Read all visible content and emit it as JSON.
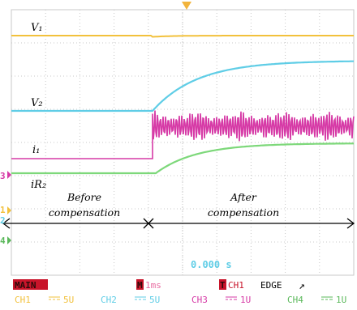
{
  "colors": {
    "grid": "#c8c8c8",
    "ch1": "#f2c13c",
    "ch2": "#5fcde6",
    "ch3": "#d63aa6",
    "ch4": "#7dd87a",
    "status_red": "#c8142a",
    "trigger_marker": "#f2b43c"
  },
  "signals": {
    "v1": "V₁",
    "v2": "V₂",
    "i1": "i₁",
    "ir2": "iR₂"
  },
  "annotations": {
    "before_line1": "Before",
    "before_line2": "compensation",
    "after_line1": "After",
    "after_line2": "compensation"
  },
  "channel_markers": {
    "m3": "3",
    "m1": "1",
    "m2": "2",
    "m4": "4"
  },
  "readout": {
    "time": "0.000 s"
  },
  "status_row": {
    "main": "MAIN",
    "timebase_tag": "M",
    "timebase": "1ms",
    "trigger_tag": "T",
    "trigger_source": "CH1",
    "trigger_type": "EDGE",
    "trigger_slope": "↗"
  },
  "channels": [
    {
      "label": "CH1",
      "coupling": "DC",
      "scale": "5U"
    },
    {
      "label": "CH2",
      "coupling": "DC",
      "scale": "5U"
    },
    {
      "label": "CH3",
      "coupling": "DC",
      "scale": "1U"
    },
    {
      "label": "CH4",
      "coupling": "DC",
      "scale": "1U"
    }
  ]
}
